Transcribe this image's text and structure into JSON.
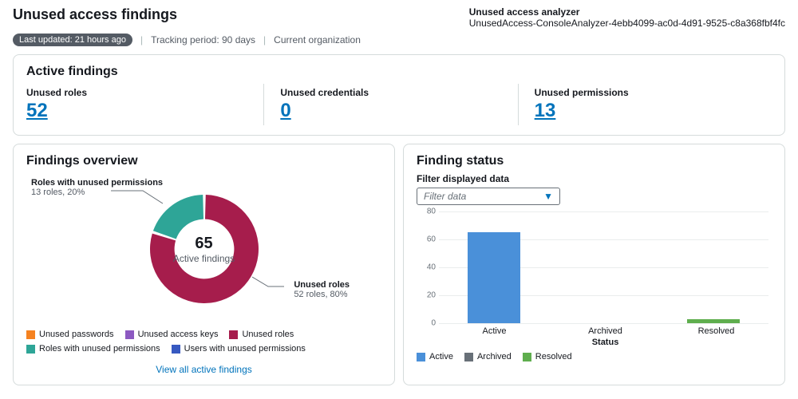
{
  "header": {
    "title": "Unused access findings",
    "analyzer_label": "Unused access analyzer",
    "analyzer_name": "UnusedAccess-ConsoleAnalyzer-4ebb4099-ac0d-4d91-9525-c8a368fbf4fc",
    "last_updated_badge": "Last updated: 21 hours ago",
    "tracking_period": "Tracking period: 90 days",
    "scope": "Current organization"
  },
  "active_findings": {
    "title": "Active findings",
    "metrics": [
      {
        "label": "Unused roles",
        "value": "52"
      },
      {
        "label": "Unused credentials",
        "value": "0"
      },
      {
        "label": "Unused permissions",
        "value": "13"
      }
    ],
    "link_color": "#0073bb"
  },
  "findings_overview": {
    "title": "Findings overview",
    "donut": {
      "total_value": "65",
      "total_label": "Active findings",
      "center_text_color": "#16191f",
      "ring_bg": "#ffffff",
      "gap_deg": 3,
      "thickness": 18,
      "slices": [
        {
          "label": "Unused roles",
          "sublabel": "52 roles, 80%",
          "value": 52,
          "color": "#a61d4c"
        },
        {
          "label": "Roles with unused permissions",
          "sublabel": "13 roles, 20%",
          "value": 13,
          "color": "#2ea597"
        }
      ],
      "callout_top": {
        "title": "Roles with unused permissions",
        "sub": "13 roles, 20%"
      },
      "callout_bottom": {
        "title": "Unused roles",
        "sub": "52 roles, 80%"
      }
    },
    "legend": [
      {
        "label": "Unused passwords",
        "color": "#f58220"
      },
      {
        "label": "Unused access keys",
        "color": "#8c59c1"
      },
      {
        "label": "Unused roles",
        "color": "#a61d4c"
      },
      {
        "label": "Roles with unused permissions",
        "color": "#2ea597"
      },
      {
        "label": "Users with unused permissions",
        "color": "#3759c1"
      }
    ],
    "view_all_label": "View all active findings"
  },
  "finding_status": {
    "title": "Finding status",
    "filter_label": "Filter displayed data",
    "filter_placeholder": "Filter data",
    "chart": {
      "type": "bar",
      "y_max": 80,
      "y_tick_step": 20,
      "y_ticks": [
        "0",
        "20",
        "40",
        "60",
        "80"
      ],
      "grid_color": "#eaeded",
      "axis_color": "#687078",
      "background": "#ffffff",
      "x_title": "Status",
      "series": [
        {
          "label": "Active",
          "value": 65,
          "color": "#4a90d9"
        },
        {
          "label": "Archived",
          "value": 0,
          "color": "#687078"
        },
        {
          "label": "Resolved",
          "value": 3,
          "color": "#5fae4e"
        }
      ]
    },
    "legend": [
      {
        "label": "Active",
        "color": "#4a90d9"
      },
      {
        "label": "Archived",
        "color": "#687078"
      },
      {
        "label": "Resolved",
        "color": "#5fae4e"
      }
    ]
  }
}
